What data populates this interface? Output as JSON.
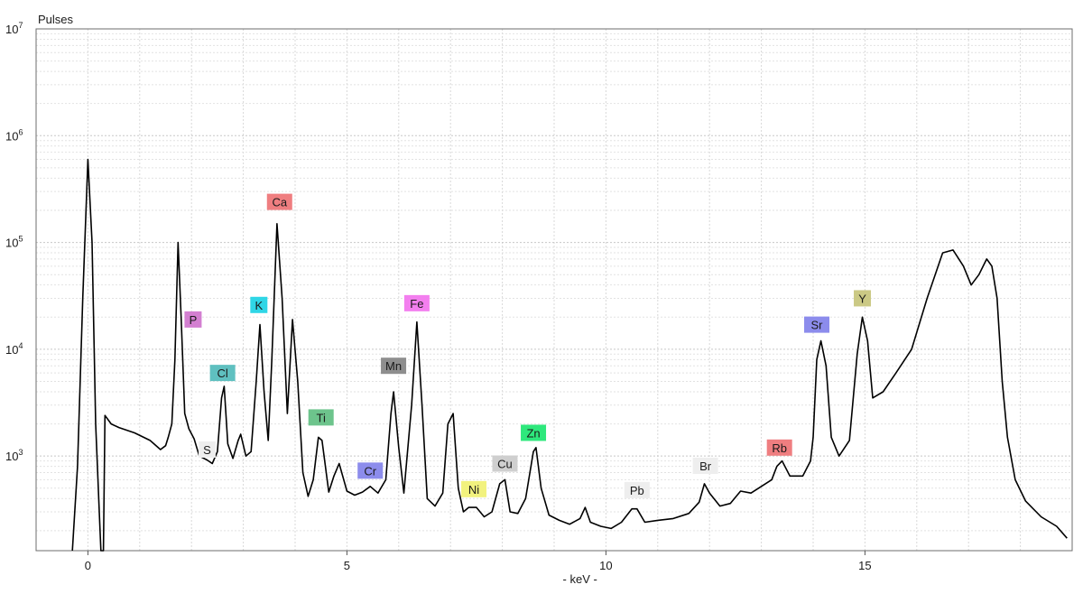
{
  "chart_data": {
    "type": "line",
    "ylabel": "Pulses",
    "xlabel": "- keV -",
    "xlim": [
      -1.0,
      19.0
    ],
    "ylim": [
      130,
      10000000
    ],
    "y_scale": "log",
    "grid": true,
    "x_ticks": [
      {
        "value": 0,
        "label": "0"
      },
      {
        "value": 5,
        "label": "5"
      },
      {
        "value": 10,
        "label": "10"
      },
      {
        "value": 15,
        "label": "15"
      }
    ],
    "y_ticks": [
      {
        "value": 1000,
        "base": "10",
        "exp": "3"
      },
      {
        "value": 10000,
        "base": "10",
        "exp": "4"
      },
      {
        "value": 100000,
        "base": "10",
        "exp": "5"
      },
      {
        "value": 1000000,
        "base": "10",
        "exp": "6"
      },
      {
        "value": 10000000,
        "base": "10",
        "exp": "7"
      }
    ],
    "series": [
      {
        "color": "#000000",
        "points": [
          [
            -0.3,
            130
          ],
          [
            -0.2,
            800
          ],
          [
            -0.1,
            30000
          ],
          [
            0.0,
            600000
          ],
          [
            0.08,
            100000
          ],
          [
            0.15,
            2000
          ],
          [
            0.22,
            300
          ],
          [
            0.25,
            130
          ],
          [
            0.3,
            130
          ],
          [
            0.33,
            2400
          ],
          [
            0.45,
            2000
          ],
          [
            0.6,
            1850
          ],
          [
            0.9,
            1650
          ],
          [
            1.2,
            1400
          ],
          [
            1.4,
            1150
          ],
          [
            1.5,
            1250
          ],
          [
            1.55,
            1500
          ],
          [
            1.62,
            2000
          ],
          [
            1.68,
            8000
          ],
          [
            1.74,
            100000
          ],
          [
            1.8,
            20000
          ],
          [
            1.87,
            2500
          ],
          [
            1.95,
            1800
          ],
          [
            2.05,
            1450
          ],
          [
            2.15,
            1000
          ],
          [
            2.3,
            920
          ],
          [
            2.4,
            850
          ],
          [
            2.5,
            1100
          ],
          [
            2.58,
            3500
          ],
          [
            2.63,
            4500
          ],
          [
            2.7,
            1300
          ],
          [
            2.8,
            950
          ],
          [
            2.9,
            1400
          ],
          [
            2.95,
            1600
          ],
          [
            3.05,
            1000
          ],
          [
            3.15,
            1100
          ],
          [
            3.25,
            5000
          ],
          [
            3.32,
            17000
          ],
          [
            3.4,
            4000
          ],
          [
            3.48,
            1400
          ],
          [
            3.55,
            8000
          ],
          [
            3.65,
            150000
          ],
          [
            3.75,
            30000
          ],
          [
            3.85,
            2500
          ],
          [
            3.95,
            19000
          ],
          [
            4.05,
            5000
          ],
          [
            4.15,
            700
          ],
          [
            4.25,
            420
          ],
          [
            4.35,
            600
          ],
          [
            4.45,
            1500
          ],
          [
            4.52,
            1400
          ],
          [
            4.65,
            460
          ],
          [
            4.75,
            650
          ],
          [
            4.85,
            850
          ],
          [
            5.0,
            470
          ],
          [
            5.15,
            430
          ],
          [
            5.3,
            460
          ],
          [
            5.45,
            520
          ],
          [
            5.6,
            450
          ],
          [
            5.75,
            600
          ],
          [
            5.85,
            2500
          ],
          [
            5.9,
            4000
          ],
          [
            6.0,
            1200
          ],
          [
            6.1,
            450
          ],
          [
            6.25,
            3000
          ],
          [
            6.35,
            18000
          ],
          [
            6.45,
            3000
          ],
          [
            6.55,
            400
          ],
          [
            6.7,
            340
          ],
          [
            6.85,
            450
          ],
          [
            6.95,
            2000
          ],
          [
            7.05,
            2500
          ],
          [
            7.15,
            500
          ],
          [
            7.25,
            300
          ],
          [
            7.35,
            330
          ],
          [
            7.5,
            330
          ],
          [
            7.65,
            270
          ],
          [
            7.8,
            300
          ],
          [
            7.95,
            550
          ],
          [
            8.05,
            600
          ],
          [
            8.15,
            300
          ],
          [
            8.3,
            290
          ],
          [
            8.45,
            400
          ],
          [
            8.6,
            1100
          ],
          [
            8.65,
            1200
          ],
          [
            8.75,
            500
          ],
          [
            8.9,
            280
          ],
          [
            9.1,
            250
          ],
          [
            9.3,
            230
          ],
          [
            9.5,
            260
          ],
          [
            9.6,
            330
          ],
          [
            9.7,
            240
          ],
          [
            9.9,
            220
          ],
          [
            10.1,
            210
          ],
          [
            10.3,
            240
          ],
          [
            10.5,
            320
          ],
          [
            10.6,
            320
          ],
          [
            10.75,
            240
          ],
          [
            11.0,
            250
          ],
          [
            11.3,
            260
          ],
          [
            11.6,
            290
          ],
          [
            11.8,
            370
          ],
          [
            11.9,
            550
          ],
          [
            12.0,
            450
          ],
          [
            12.2,
            340
          ],
          [
            12.4,
            360
          ],
          [
            12.6,
            470
          ],
          [
            12.8,
            450
          ],
          [
            13.0,
            520
          ],
          [
            13.2,
            600
          ],
          [
            13.3,
            800
          ],
          [
            13.4,
            900
          ],
          [
            13.55,
            650
          ],
          [
            13.8,
            650
          ],
          [
            13.95,
            900
          ],
          [
            14.0,
            1500
          ],
          [
            14.07,
            8000
          ],
          [
            14.15,
            12000
          ],
          [
            14.25,
            7000
          ],
          [
            14.35,
            1500
          ],
          [
            14.5,
            1000
          ],
          [
            14.7,
            1400
          ],
          [
            14.85,
            9000
          ],
          [
            14.95,
            20000
          ],
          [
            15.05,
            12000
          ],
          [
            15.15,
            3500
          ],
          [
            15.35,
            4000
          ],
          [
            15.6,
            6000
          ],
          [
            15.9,
            10000
          ],
          [
            16.2,
            30000
          ],
          [
            16.5,
            80000
          ],
          [
            16.7,
            85000
          ],
          [
            16.9,
            60000
          ],
          [
            17.05,
            40000
          ],
          [
            17.2,
            50000
          ],
          [
            17.35,
            70000
          ],
          [
            17.45,
            60000
          ],
          [
            17.55,
            30000
          ],
          [
            17.65,
            5000
          ],
          [
            17.75,
            1500
          ],
          [
            17.9,
            600
          ],
          [
            18.1,
            380
          ],
          [
            18.4,
            270
          ],
          [
            18.7,
            220
          ],
          [
            18.9,
            170
          ]
        ]
      }
    ],
    "annotations": [
      {
        "label": "P",
        "x": 2.03,
        "y": 19000,
        "color": "#D37FD1"
      },
      {
        "label": "Cl",
        "x": 2.6,
        "y": 6000,
        "color": "#5FC0C0"
      },
      {
        "label": "S",
        "x": 2.3,
        "y": 1150,
        "color": "#EEEEEE"
      },
      {
        "label": "K",
        "x": 3.3,
        "y": 26000,
        "color": "#2FD6E6"
      },
      {
        "label": "Ca",
        "x": 3.7,
        "y": 240000,
        "color": "#EF7E80"
      },
      {
        "label": "Ti",
        "x": 4.5,
        "y": 2300,
        "color": "#6DC48C"
      },
      {
        "label": "Cr",
        "x": 5.45,
        "y": 730,
        "color": "#8C8CEC"
      },
      {
        "label": "Mn",
        "x": 5.9,
        "y": 7000,
        "color": "#8E8E8E"
      },
      {
        "label": "Fe",
        "x": 6.35,
        "y": 27000,
        "color": "#F37FEF"
      },
      {
        "label": "Ni",
        "x": 7.45,
        "y": 490,
        "color": "#F2F27E"
      },
      {
        "label": "Cu",
        "x": 8.05,
        "y": 850,
        "color": "#CFCFCF"
      },
      {
        "label": "Zn",
        "x": 8.6,
        "y": 1650,
        "color": "#2EE87C"
      },
      {
        "label": "Pb",
        "x": 10.6,
        "y": 480,
        "color": "#EEEEEE"
      },
      {
        "label": "Br",
        "x": 11.92,
        "y": 810,
        "color": "#EEEEEE"
      },
      {
        "label": "Rb",
        "x": 13.35,
        "y": 1200,
        "color": "#EF7E80"
      },
      {
        "label": "Sr",
        "x": 14.07,
        "y": 17000,
        "color": "#8C8CEC"
      },
      {
        "label": "Y",
        "x": 14.95,
        "y": 30000,
        "color": "#CBC985"
      }
    ]
  }
}
